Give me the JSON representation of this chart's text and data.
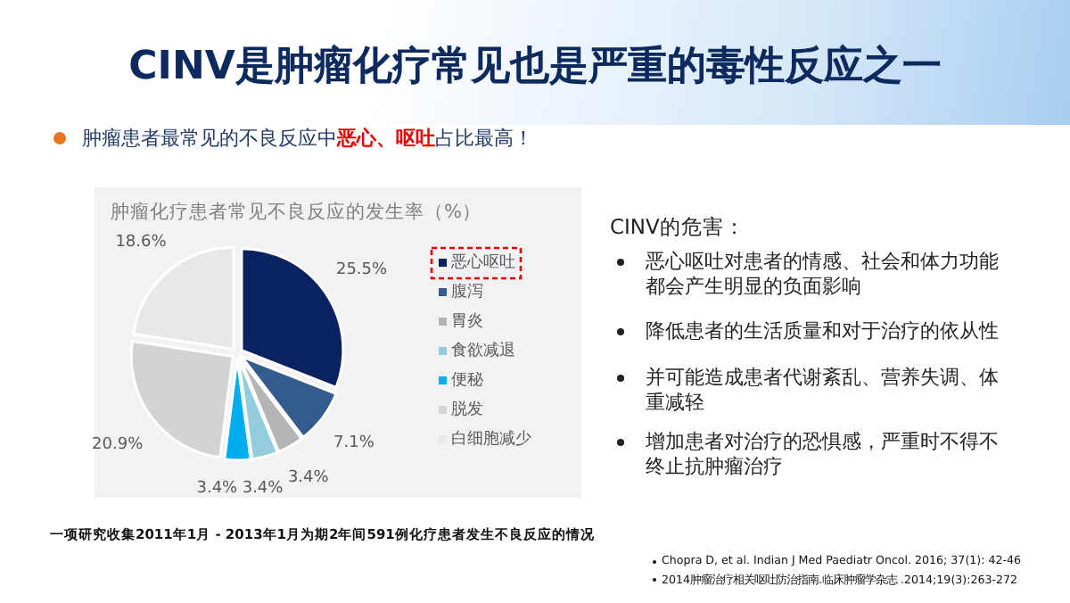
{
  "chart_data": {
    "type": "pie",
    "title": "CINV是肿瘤化疗常见也是严重的毒性反应之一",
    "subtitle": "肿瘤化疗患者常见不良反应的发生率（%）",
    "categories": [
      "恶心呕吐",
      "腹泻",
      "胃炎",
      "食欲减退",
      "便秘",
      "脱发",
      "白细胞减少"
    ],
    "values": [
      25.5,
      7.1,
      3.4,
      3.4,
      3.4,
      20.9,
      18.6
    ],
    "value_labels": [
      "25.5%",
      "7.1%",
      "3.4%",
      "3.4%",
      "3.4%",
      "20.9%",
      "18.6%"
    ],
    "colors": [
      "#0b2260",
      "#335b8e",
      "#b5b5b5",
      "#93cddd",
      "#00aeef",
      "#d3d3d3",
      "#e8e8e8"
    ],
    "legend": "right",
    "annotations": [
      "肿瘤患者最常见的不良反应中**恶心、呕吐**占比最高！",
      "CINV的危害：",
      "恶心呕吐对患者的情感、社会和体力功能都会产生明显的负面影响",
      "降低患者的生活质量和对于治疗的依从性",
      "并可能造成患者代谢紊乱、营养失调、体重减轻",
      "增加患者对治疗的恐惧感，严重时不得不终止抗肿瘤治疗",
      "一项研究收集2011年1月 - 2013年1月为期2年间591例化疗患者发生不良反应的情况",
      "Chopra D, et al. Indian J Med Paediatr Oncol. 2016; 37(1): 42-46",
      "2014肿瘤治疗相关呕吐防治指南.临床肿瘤学杂志 .2014;19(3):263-272"
    ]
  }
}
